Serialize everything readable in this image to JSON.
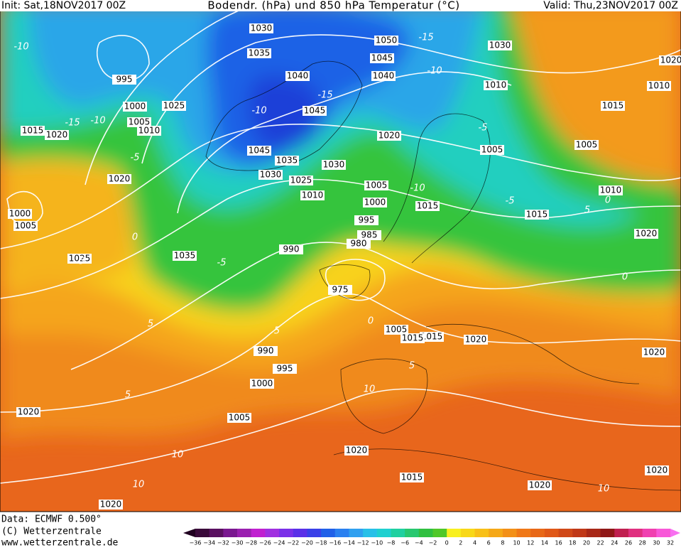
{
  "header": {
    "init": "Init: Sat,18NOV2017 00Z",
    "title": "Bodendr. (hPa) und 850 hPa Temperatur (°C)",
    "valid": "Valid: Thu,23NOV2017 00Z"
  },
  "footer": {
    "data": "Data: ECMWF   0.500°",
    "copyright": "(C) Wetterzentrale",
    "url": "www.wetterzentrale.de"
  },
  "colorbar": {
    "ticks": [
      "−36",
      "−34",
      "−32",
      "−30",
      "−28",
      "−26",
      "−24",
      "−22",
      "−20",
      "−18",
      "−16",
      "−14",
      "−12",
      "−10",
      "−8",
      "−6",
      "−4",
      "−2",
      "0",
      "2",
      "4",
      "6",
      "8",
      "10",
      "12",
      "14",
      "16",
      "18",
      "20",
      "22",
      "24",
      "26",
      "28",
      "30",
      "32"
    ]
  },
  "isobar_labels": [
    "1030",
    "1050",
    "1045",
    "1040",
    "1035",
    "1025",
    "995",
    "1000",
    "1005",
    "1010",
    "1015",
    "1020",
    "1020",
    "1000",
    "1005",
    "1025",
    "1020",
    "1020",
    "990",
    "985",
    "980",
    "975",
    "1030",
    "1035",
    "1025",
    "1010",
    "1005",
    "1000",
    "995",
    "1045",
    "1040",
    "1045",
    "1035",
    "1030",
    "1010",
    "1005",
    "1015",
    "1005",
    "1015",
    "1010",
    "1020",
    "1020",
    "1005",
    "1015",
    "1020",
    "990",
    "995",
    "1000",
    "1005",
    "1020",
    "1015",
    "1020",
    "1020",
    "1020",
    "1015",
    "1010",
    "1015",
    "1030",
    "1020"
  ],
  "temperature_labels": [
    "-10",
    "-15",
    "-10",
    "-5",
    "0",
    "5",
    "-5",
    "-10",
    "-15",
    "-10",
    "-15",
    "0",
    "5",
    "5",
    "10",
    "10",
    "10",
    "0",
    "5",
    "-5",
    "-10",
    "-5",
    "5",
    "10",
    "5",
    "0"
  ]
}
